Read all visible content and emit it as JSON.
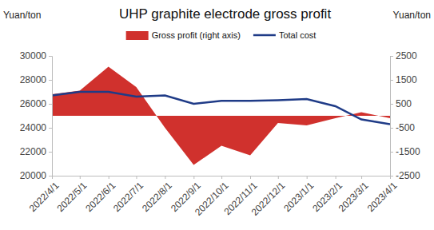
{
  "chart_data": {
    "type": "line",
    "title": "UHP graphite electrode gross profit",
    "y_label": "Yuan/ton",
    "y2_label": "Yuan/ton",
    "x": [
      "2022/4/1",
      "2022/5/1",
      "2022/6/1",
      "2022/7/1",
      "2022/8/1",
      "2022/9/1",
      "2022/10/1",
      "2022/11/1",
      "2022/12/1",
      "2023/1/1",
      "2023/2/1",
      "2023/3/1",
      "2023/4/1"
    ],
    "xlim": [
      "2022/4/1",
      "2023/4/1"
    ],
    "xticks": [
      "2022/4/1",
      "2022/5/1",
      "2022/6/1",
      "2022/7/1",
      "2022/8/1",
      "2022/9/1",
      "2022/10/1",
      "2022/11/1",
      "2022/12/1",
      "2023/1/1",
      "2023/2/1",
      "2023/3/1",
      "2023/4/1"
    ],
    "ylim": [
      20000,
      30000
    ],
    "yticks": [
      20000,
      22000,
      24000,
      26000,
      28000,
      30000
    ],
    "y2lim": [
      -2500,
      2500
    ],
    "y2ticks": [
      -2500,
      -1500,
      -500,
      500,
      1500,
      2500
    ],
    "legend": "top",
    "grid": false,
    "series": [
      {
        "name": "Gross profit (right axis)",
        "type": "area",
        "axis": "y2",
        "color": "#d0312d",
        "values": [
          900,
          1050,
          2050,
          1200,
          -500,
          -2050,
          -1250,
          -1650,
          -300,
          -400,
          -100,
          150,
          -100
        ]
      },
      {
        "name": "Total cost",
        "type": "line",
        "axis": "y",
        "color": "#1f3b87",
        "values": [
          26700,
          27000,
          27000,
          26600,
          26700,
          26000,
          26250,
          26250,
          26300,
          26400,
          25800,
          24700,
          24300
        ]
      }
    ]
  }
}
